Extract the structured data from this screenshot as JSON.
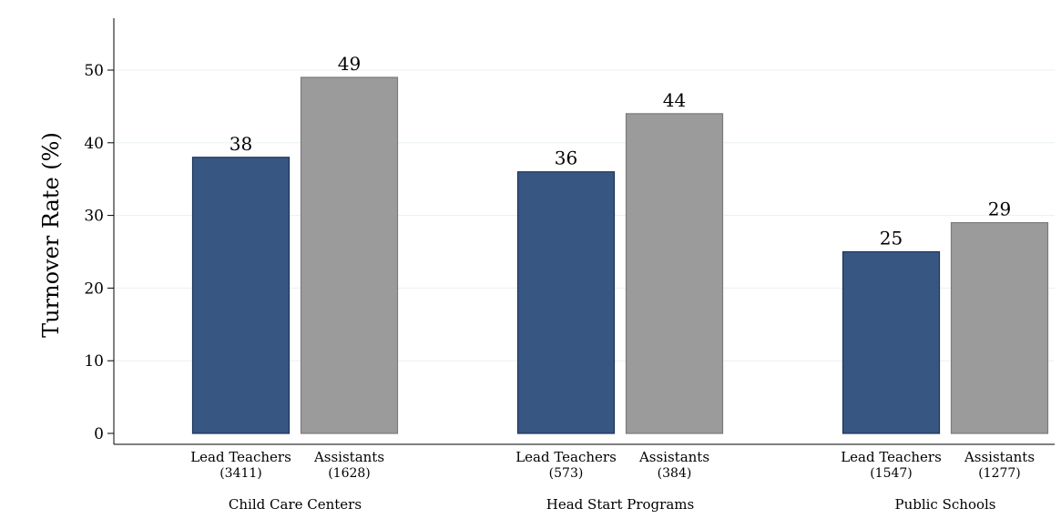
{
  "chart_data": {
    "type": "bar",
    "title": "",
    "xlabel": "",
    "ylabel": "Turnover Rate (%)",
    "ylim": [
      0,
      55
    ],
    "yticks": [
      0,
      10,
      20,
      30,
      40,
      50
    ],
    "grid": true,
    "legend": "none",
    "colors": {
      "lead": "#375782",
      "lead_edge": "#1c3358",
      "assistant": "#9b9b9b",
      "assistant_edge": "#7a7a7a",
      "grid": "#eaf0f3",
      "axis": "#000000"
    },
    "groups": [
      {
        "name": "Child Care Centers",
        "bars": [
          {
            "role": "lead",
            "label": "Lead Teachers",
            "n": "(3411)",
            "value": 38
          },
          {
            "role": "assistant",
            "label": "Assistants",
            "n": "(1628)",
            "value": 49
          }
        ]
      },
      {
        "name": "Head Start Programs",
        "bars": [
          {
            "role": "lead",
            "label": "Lead Teachers",
            "n": "(573)",
            "value": 36
          },
          {
            "role": "assistant",
            "label": "Assistants",
            "n": "(384)",
            "value": 44
          }
        ]
      },
      {
        "name": "Public Schools",
        "bars": [
          {
            "role": "lead",
            "label": "Lead Teachers",
            "n": "(1547)",
            "value": 25
          },
          {
            "role": "assistant",
            "label": "Assistants",
            "n": "(1277)",
            "value": 29
          }
        ]
      }
    ]
  }
}
